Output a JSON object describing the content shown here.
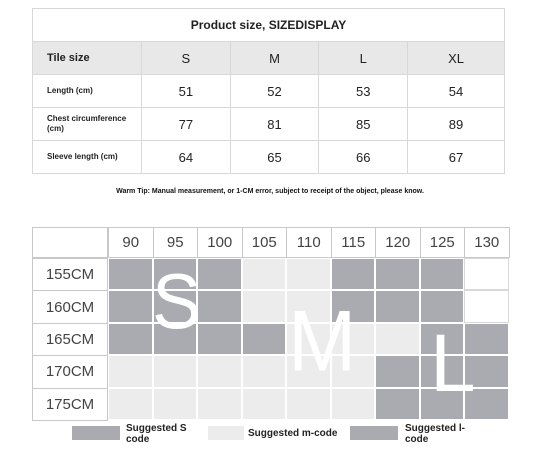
{
  "size_table": {
    "title": "Product size, SIZEDISPLAY",
    "header_label": "Tile size",
    "sizes": [
      "S",
      "M",
      "L",
      "XL"
    ],
    "rows": [
      {
        "label": "Length (cm)",
        "values": [
          "51",
          "52",
          "53",
          "54"
        ]
      },
      {
        "label": "Chest circumference (cm)",
        "values": [
          "77",
          "81",
          "85",
          "89"
        ]
      },
      {
        "label": "Sleeve length (cm)",
        "values": [
          "64",
          "65",
          "66",
          "67"
        ]
      }
    ]
  },
  "tip": "Warm Tip: Manual measurement, or 1-CM error, subject to receipt of the object, please know.",
  "recommend": {
    "weights": [
      "90",
      "95",
      "100",
      "105",
      "110",
      "115",
      "120",
      "125",
      "130"
    ],
    "heights": [
      "155CM",
      "160CM",
      "165CM",
      "170CM",
      "175CM"
    ],
    "grid": [
      [
        "S",
        "S",
        "S",
        "M",
        "M",
        "L",
        "L",
        "L",
        "W"
      ],
      [
        "S",
        "S",
        "S",
        "M",
        "M",
        "L",
        "L",
        "L",
        "W"
      ],
      [
        "S",
        "S",
        "S",
        "S",
        "M",
        "M",
        "M",
        "L",
        "L"
      ],
      [
        "M",
        "M",
        "M",
        "M",
        "M",
        "M",
        "L",
        "L",
        "L"
      ],
      [
        "M",
        "M",
        "M",
        "M",
        "M",
        "M",
        "L",
        "L",
        "L"
      ]
    ],
    "big_letters": {
      "s": "S",
      "m": "M",
      "l": "L"
    }
  },
  "legend": [
    {
      "label": "Suggested S code",
      "color": "#a9abb0"
    },
    {
      "label": "Suggested m-code",
      "color": "#ececec"
    },
    {
      "label": "Suggested l-code",
      "color": "#a9abb0"
    }
  ],
  "colors": {
    "S": "#a9abb0",
    "L": "#a9abb0",
    "M": "#ececec",
    "W": "#ffffff"
  }
}
